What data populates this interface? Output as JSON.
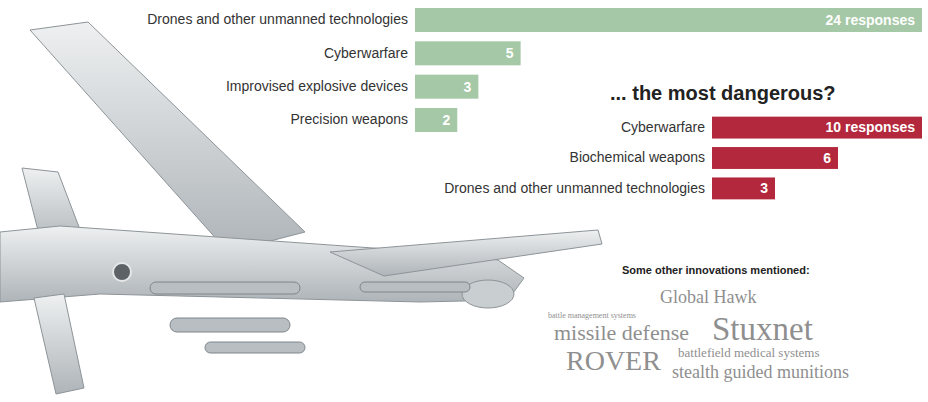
{
  "chart_data": [
    {
      "type": "bar",
      "orientation": "horizontal",
      "categories": [
        "Drones and other unmanned technologies",
        "Cyberwarfare",
        "Improvised explosive devices",
        "Precision weapons"
      ],
      "values": [
        24,
        5,
        3,
        2
      ],
      "value_labels": [
        "24 responses",
        "5",
        "3",
        "2"
      ],
      "color": "#a5c8a6",
      "xlim": [
        0,
        24
      ],
      "data_labels": true,
      "tick_labels": "y"
    },
    {
      "type": "bar",
      "orientation": "horizontal",
      "title": "... the most dangerous?",
      "categories": [
        "Cyberwarfare",
        "Biochemical weapons",
        "Drones and other unmanned technologies"
      ],
      "values": [
        10,
        6,
        3
      ],
      "value_labels": [
        "10 responses",
        "6",
        "3"
      ],
      "color": "#b3283c",
      "xlim": [
        0,
        10
      ],
      "data_labels": true,
      "tick_labels": "y"
    }
  ],
  "word_cloud": {
    "title": "Some other innovations mentioned:",
    "words": [
      "Global Hawk",
      "battle management systems",
      "missile defense",
      "Stuxnet",
      "ROVER",
      "battlefield medical systems",
      "stealth guided munitions"
    ]
  }
}
